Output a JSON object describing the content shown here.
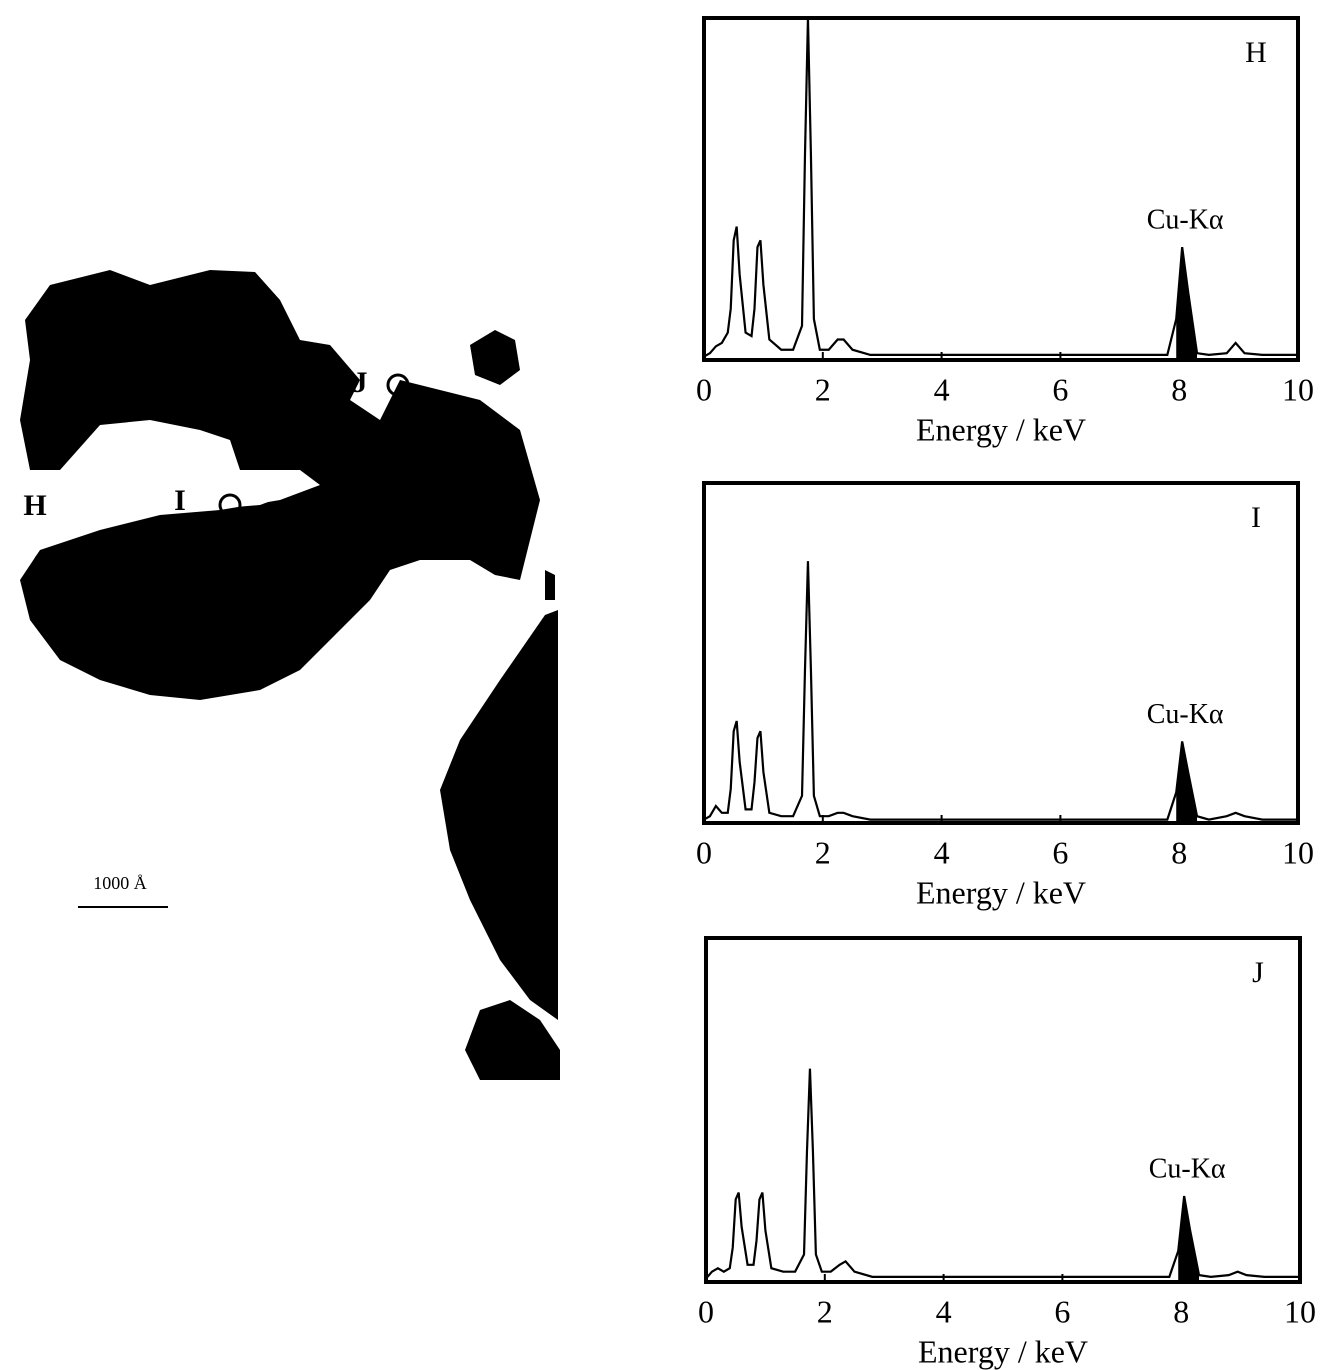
{
  "micrograph": {
    "labels": [
      "H",
      "I",
      "J"
    ],
    "scale_bar": "1000 Å"
  },
  "chart_data": [
    {
      "type": "line",
      "label": "H",
      "annotation": "Cu-Kα",
      "xlabel": "Energy / keV",
      "xlim": [
        0,
        10
      ],
      "xticks": [
        0,
        2,
        4,
        6,
        8,
        10
      ],
      "ylim": [
        0,
        100
      ],
      "color": "#000000",
      "shaded_range": [
        7.9,
        8.3
      ],
      "x": [
        0,
        0.1,
        0.2,
        0.3,
        0.4,
        0.45,
        0.5,
        0.55,
        0.6,
        0.7,
        0.8,
        0.85,
        0.9,
        0.95,
        1.0,
        1.1,
        1.3,
        1.5,
        1.65,
        1.7,
        1.75,
        1.8,
        1.85,
        1.95,
        2.1,
        2.25,
        2.35,
        2.5,
        2.8,
        3.5,
        5,
        7,
        7.8,
        7.95,
        8.05,
        8.15,
        8.3,
        8.5,
        8.8,
        8.95,
        9.1,
        9.4,
        10
      ],
      "values": [
        1,
        2,
        4,
        5,
        8,
        15,
        35,
        39,
        25,
        8,
        7,
        15,
        33,
        35,
        22,
        6,
        3,
        3,
        10,
        60,
        100,
        60,
        12,
        3,
        3,
        6,
        6,
        3,
        1.5,
        1.5,
        1.5,
        1.5,
        1.5,
        12,
        33,
        20,
        2,
        1.5,
        2,
        5,
        2,
        1.5,
        1.5
      ]
    },
    {
      "type": "line",
      "label": "I",
      "annotation": "Cu-Kα",
      "xlabel": "Energy / keV",
      "xlim": [
        0,
        10
      ],
      "xticks": [
        0,
        2,
        4,
        6,
        8,
        10
      ],
      "ylim": [
        0,
        100
      ],
      "color": "#000000",
      "shaded_range": [
        7.9,
        8.3
      ],
      "x": [
        0,
        0.1,
        0.2,
        0.3,
        0.4,
        0.45,
        0.5,
        0.55,
        0.6,
        0.7,
        0.8,
        0.85,
        0.9,
        0.95,
        1.0,
        1.1,
        1.3,
        1.5,
        1.65,
        1.7,
        1.75,
        1.8,
        1.85,
        1.95,
        2.1,
        2.25,
        2.35,
        2.5,
        2.8,
        3.5,
        5,
        7,
        7.8,
        7.95,
        8.05,
        8.15,
        8.3,
        8.5,
        8.8,
        8.95,
        9.1,
        9.4,
        10
      ],
      "values": [
        1,
        2,
        5,
        3,
        3,
        10,
        27,
        30,
        18,
        4,
        4,
        12,
        25,
        27,
        15,
        3,
        2,
        2,
        8,
        45,
        77,
        45,
        8,
        2,
        2,
        3,
        3,
        2,
        1,
        1,
        1,
        1,
        1,
        9,
        24,
        15,
        2,
        1,
        2,
        3,
        2,
        1,
        1
      ]
    },
    {
      "type": "line",
      "label": "J",
      "annotation": "Cu-Kα",
      "xlabel": "Energy / keV",
      "xlim": [
        0,
        10
      ],
      "xticks": [
        0,
        2,
        4,
        6,
        8,
        10
      ],
      "ylim": [
        0,
        100
      ],
      "color": "#000000",
      "shaded_range": [
        7.9,
        8.3
      ],
      "x": [
        0,
        0.1,
        0.2,
        0.3,
        0.4,
        0.45,
        0.5,
        0.55,
        0.6,
        0.7,
        0.8,
        0.85,
        0.9,
        0.95,
        1.0,
        1.1,
        1.3,
        1.5,
        1.65,
        1.7,
        1.75,
        1.8,
        1.85,
        1.95,
        2.1,
        2.25,
        2.35,
        2.5,
        2.8,
        3.5,
        5,
        7,
        7.8,
        7.95,
        8.05,
        8.15,
        8.3,
        8.5,
        8.8,
        8.95,
        9.1,
        9.4,
        10
      ],
      "values": [
        1,
        3,
        4,
        3,
        4,
        10,
        24,
        26,
        16,
        5,
        5,
        12,
        24,
        26,
        15,
        4,
        3,
        3,
        8,
        38,
        62,
        38,
        8,
        3,
        3,
        5,
        6,
        3,
        1.5,
        1.5,
        1.5,
        1.5,
        1.5,
        9,
        25,
        15,
        2,
        1.5,
        2,
        3,
        2,
        1.5,
        1.5
      ]
    }
  ]
}
